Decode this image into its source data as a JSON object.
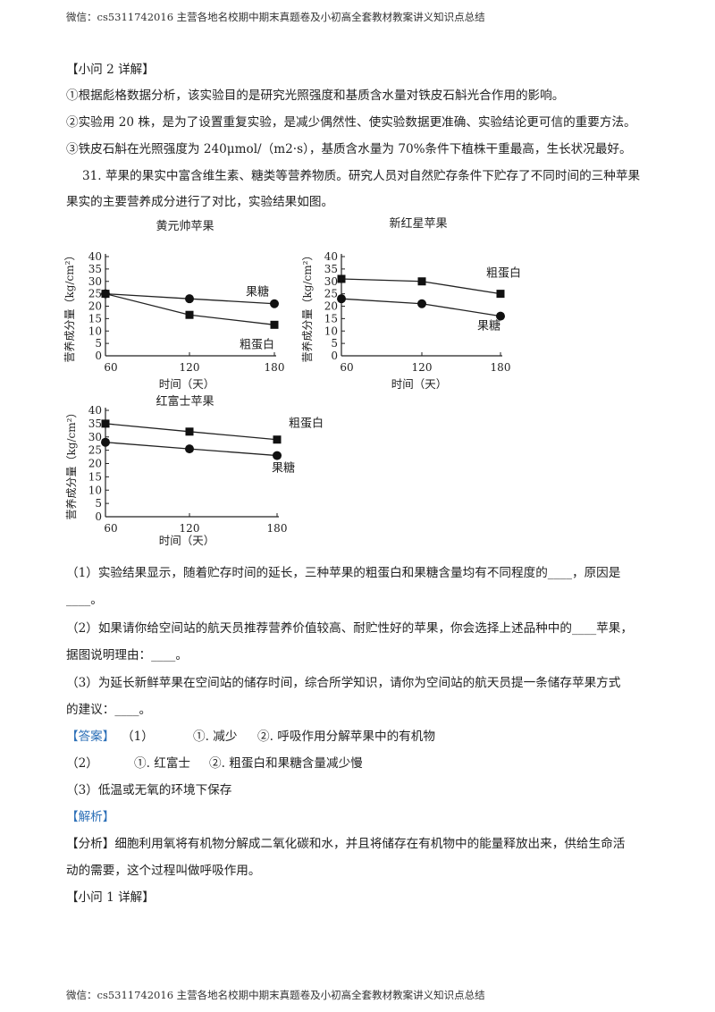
{
  "header": "微信：cs5311742016  主营各地名校期中期末真题卷及小初高全套教材教案讲义知识点总结",
  "footer": "微信：cs5311742016  主营各地名校期中期末真题卷及小初高全套教材教案讲义知识点总结",
  "section_q2_title": "【小问 2 详解】",
  "para1": "①根据彪格数据分析，该实验目的是研究光照强度和基质含水量对铁皮石斛光合作用的影响。",
  "para2": "②实验用 20 株，是为了设置重复实验，是减少偶然性、使实验数据更准确、实验结论更可信的重要方法。",
  "para3": "③铁皮石斛在光照强度为 240μmol/（m2·s），基质含水量为 70%条件下植株干重最高，生长状况最好。",
  "q31_line1": "31. 苹果的果实中富含维生素、糖类等营养物质。研究人员对自然贮存条件下贮存了不同时间的三种苹果",
  "q31_line2": "果实的主要营养成分进行了对比，实验结果如图。",
  "q1_line1": "（1）实验结果显示，随着贮存时间的延长，三种苹果的粗蛋白和果糖含量均有不同程度的____，原因是",
  "q1_line2": "____。",
  "q2_line1": "（2）如果请你给空间站的航天员推荐营养价值较高、耐贮性好的苹果，你会选择上述品种中的____苹果，",
  "q2_line2": "据图说明理由：____。",
  "q3_line1": "（3）为延长新鲜苹果在空间站的储存时间，综合所学知识，请你为空间站的航天员提一条储存苹果方式",
  "q3_line2": "的建议：____。",
  "answer_tag": "【答案】",
  "ans1_num": "（1）",
  "ans1_a": "①. 减少",
  "ans1_b": "②. 呼吸作用分解苹果中的有机物",
  "ans2_num": "（2）",
  "ans2_a": "①. 红富士",
  "ans2_b": "②. 粗蛋白和果糖含量减少慢",
  "ans3": "（3）低温或无氧的环境下保存",
  "analysis_tag": "【解析】",
  "analysis_head": "【分析】",
  "analysis_line1": "细胞利用氧将有机物分解成二氧化碳和水，并且将储存在有机物中的能量释放出来，供给生命活",
  "analysis_line2": "动的需要，这个过程叫做呼吸作用。",
  "section_q1_title": "【小问 1 详解】",
  "chart_data": [
    {
      "type": "line",
      "title": "黄元帅苹果",
      "xlabel": "时间（天）",
      "ylabel": "营养成分量（kg/cm²）",
      "x": [
        60,
        120,
        180
      ],
      "ylim": [
        0,
        40
      ],
      "yticks": [
        0,
        5,
        10,
        15,
        20,
        25,
        30,
        35,
        40
      ],
      "series": [
        {
          "name": "果糖",
          "marker": "circle",
          "values": [
            25,
            23,
            21
          ]
        },
        {
          "name": "粗蛋白",
          "marker": "square",
          "values": [
            25,
            16.5,
            12.5
          ]
        }
      ]
    },
    {
      "type": "line",
      "title": "新红星苹果",
      "xlabel": "时间（天）",
      "ylabel": "营养成分量（kg/cm²）",
      "x": [
        60,
        120,
        180
      ],
      "ylim": [
        0,
        40
      ],
      "yticks": [
        0,
        5,
        10,
        15,
        20,
        25,
        30,
        35,
        40
      ],
      "series": [
        {
          "name": "粗蛋白",
          "marker": "square",
          "values": [
            31,
            30,
            25
          ]
        },
        {
          "name": "果糖",
          "marker": "circle",
          "values": [
            23,
            21,
            16
          ]
        }
      ]
    },
    {
      "type": "line",
      "title": "红富士苹果",
      "xlabel": "时间（天）",
      "ylabel": "营养成分量（kg/cm²）",
      "x": [
        60,
        120,
        180
      ],
      "ylim": [
        0,
        40
      ],
      "yticks": [
        0,
        5,
        10,
        15,
        20,
        25,
        30,
        35,
        40
      ],
      "series": [
        {
          "name": "粗蛋白",
          "marker": "square",
          "values": [
            35,
            32,
            29
          ]
        },
        {
          "name": "果糖",
          "marker": "circle",
          "values": [
            28,
            25.5,
            23
          ]
        }
      ]
    }
  ]
}
